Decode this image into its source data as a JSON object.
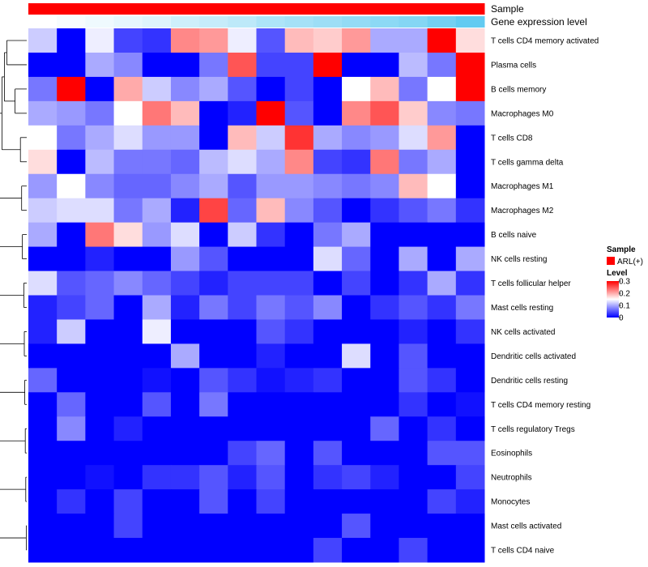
{
  "chart_data": {
    "type": "heatmap",
    "title": "",
    "columns_count": 16,
    "annotations": {
      "sample": {
        "label": "Sample",
        "value": "ARL(+)",
        "color": "#ff0000"
      },
      "gene_expression_level": {
        "label": "Gene expression level",
        "start_color": "#ffffff",
        "end_color": "#5bc8f0",
        "values": [
          0.0,
          0.05,
          0.1,
          0.15,
          0.2,
          0.3,
          0.35,
          0.4,
          0.5,
          0.55,
          0.6,
          0.65,
          0.7,
          0.75,
          0.85,
          0.95
        ]
      }
    },
    "rows": [
      "T cells CD4 memory activated",
      "Plasma cells",
      "B cells memory",
      "Macrophages M0",
      "T cells CD8",
      "T cells gamma delta",
      "Macrophages M1",
      "Macrophages M2",
      "B cells naive",
      "NK cells resting",
      "T cells follicular helper",
      "Mast cells resting",
      "NK cells activated",
      "Dendritic cells activated",
      "Dendritic cells resting",
      "T cells CD4 memory resting",
      "T cells regulatory  Tregs",
      "Eosinophils",
      "Neutrophils",
      "Monocytes",
      "Mast cells activated",
      "T cells CD4 naive"
    ],
    "values": [
      [
        0.12,
        0.0,
        0.14,
        0.04,
        0.03,
        0.22,
        0.21,
        0.14,
        0.05,
        0.19,
        0.18,
        0.21,
        0.1,
        0.1,
        0.3,
        0.17
      ],
      [
        0.0,
        0.0,
        0.1,
        0.08,
        0.0,
        0.0,
        0.07,
        0.25,
        0.04,
        0.04,
        0.3,
        0.0,
        0.0,
        0.11,
        0.07,
        0.3
      ],
      [
        0.07,
        0.3,
        0.0,
        0.2,
        0.12,
        0.08,
        0.1,
        0.05,
        0.0,
        0.04,
        0.0,
        0.15,
        0.19,
        0.07,
        0.15,
        0.3
      ],
      [
        0.1,
        0.09,
        0.07,
        0.15,
        0.23,
        0.19,
        0.0,
        0.02,
        0.3,
        0.05,
        0.0,
        0.22,
        0.25,
        0.18,
        0.08,
        0.07
      ],
      [
        0.15,
        0.07,
        0.1,
        0.13,
        0.09,
        0.09,
        0.0,
        0.19,
        0.12,
        0.27,
        0.1,
        0.08,
        0.09,
        0.13,
        0.21,
        0.0
      ],
      [
        0.17,
        0.0,
        0.11,
        0.07,
        0.07,
        0.06,
        0.11,
        0.13,
        0.1,
        0.22,
        0.04,
        0.03,
        0.23,
        0.07,
        0.1,
        0.0
      ],
      [
        0.09,
        0.15,
        0.08,
        0.06,
        0.06,
        0.08,
        0.1,
        0.05,
        0.09,
        0.09,
        0.08,
        0.07,
        0.08,
        0.19,
        0.15,
        0.0
      ],
      [
        0.12,
        0.13,
        0.13,
        0.07,
        0.1,
        0.02,
        0.26,
        0.06,
        0.19,
        0.08,
        0.05,
        0.0,
        0.03,
        0.05,
        0.07,
        0.03
      ],
      [
        0.1,
        0.0,
        0.23,
        0.17,
        0.09,
        0.13,
        0.0,
        0.12,
        0.03,
        0.0,
        0.07,
        0.1,
        0.0,
        0.0,
        0.0,
        0.0
      ],
      [
        0.0,
        0.0,
        0.02,
        0.0,
        0.0,
        0.09,
        0.05,
        0.0,
        0.0,
        0.0,
        0.13,
        0.06,
        0.0,
        0.1,
        0.0,
        0.1
      ],
      [
        0.13,
        0.05,
        0.06,
        0.08,
        0.06,
        0.04,
        0.02,
        0.04,
        0.04,
        0.04,
        0.0,
        0.04,
        0.0,
        0.03,
        0.1,
        0.03
      ],
      [
        0.02,
        0.04,
        0.06,
        0.0,
        0.1,
        0.02,
        0.07,
        0.04,
        0.07,
        0.05,
        0.08,
        0.0,
        0.03,
        0.05,
        0.03,
        0.07
      ],
      [
        0.02,
        0.12,
        0.0,
        0.0,
        0.14,
        0.0,
        0.0,
        0.0,
        0.05,
        0.03,
        0.0,
        0.0,
        0.0,
        0.02,
        0.0,
        0.03
      ],
      [
        0.0,
        0.0,
        0.0,
        0.0,
        0.0,
        0.1,
        0.0,
        0.0,
        0.02,
        0.0,
        0.0,
        0.13,
        0.0,
        0.05,
        0.0,
        0.0
      ],
      [
        0.06,
        0.0,
        0.0,
        0.0,
        0.01,
        0.0,
        0.05,
        0.03,
        0.01,
        0.02,
        0.03,
        0.0,
        0.0,
        0.05,
        0.03,
        0.0
      ],
      [
        0.0,
        0.06,
        0.0,
        0.0,
        0.05,
        0.0,
        0.07,
        0.0,
        0.0,
        0.0,
        0.0,
        0.0,
        0.0,
        0.03,
        0.0,
        0.01
      ],
      [
        0.0,
        0.08,
        0.0,
        0.02,
        0.0,
        0.0,
        0.0,
        0.0,
        0.0,
        0.0,
        0.0,
        0.0,
        0.06,
        0.0,
        0.03,
        0.0
      ],
      [
        0.0,
        0.0,
        0.0,
        0.0,
        0.0,
        0.0,
        0.0,
        0.04,
        0.06,
        0.0,
        0.05,
        0.0,
        0.0,
        0.0,
        0.05,
        0.05
      ],
      [
        0.0,
        0.0,
        0.01,
        0.0,
        0.03,
        0.03,
        0.05,
        0.02,
        0.05,
        0.0,
        0.03,
        0.04,
        0.02,
        0.0,
        0.0,
        0.04
      ],
      [
        0.0,
        0.03,
        0.0,
        0.04,
        0.0,
        0.0,
        0.05,
        0.0,
        0.04,
        0.0,
        0.0,
        0.0,
        0.0,
        0.0,
        0.04,
        0.02
      ],
      [
        0.0,
        0.0,
        0.0,
        0.04,
        0.0,
        0.0,
        0.0,
        0.0,
        0.0,
        0.0,
        0.0,
        0.05,
        0.0,
        0.0,
        0.0,
        0.0
      ],
      [
        0.0,
        0.0,
        0.0,
        0.0,
        0.0,
        0.0,
        0.0,
        0.0,
        0.0,
        0.0,
        0.04,
        0.0,
        0.0,
        0.04,
        0.0,
        0.0
      ]
    ],
    "colorscale": {
      "low_color": "#0000ff",
      "mid_color": "#ffffff",
      "high_color": "#ff0000",
      "min": 0,
      "mid": 0.15,
      "max": 0.3
    },
    "legend": {
      "sample_title": "Sample",
      "sample_entry": "ARL(+)",
      "level_title": "Level",
      "ticks": [
        "0.3",
        "0.2",
        "0.1",
        "0"
      ],
      "tick_values": [
        0.3,
        0.2,
        0.1,
        0
      ]
    },
    "dendrogram": {
      "line_color": "#000000",
      "merges": [
        [
          0,
          1,
          0.82
        ],
        [
          2,
          3,
          0.48
        ],
        [
          4,
          5,
          0.26
        ],
        [
          6,
          7,
          0.21
        ],
        [
          8,
          9,
          0.18
        ],
        [
          10,
          11,
          0.12
        ],
        [
          12,
          13,
          0.1
        ],
        [
          14,
          15,
          0.08
        ],
        [
          16,
          17,
          0.06
        ],
        [
          18,
          19,
          0.04
        ],
        [
          20,
          21,
          0.02
        ]
      ]
    }
  }
}
